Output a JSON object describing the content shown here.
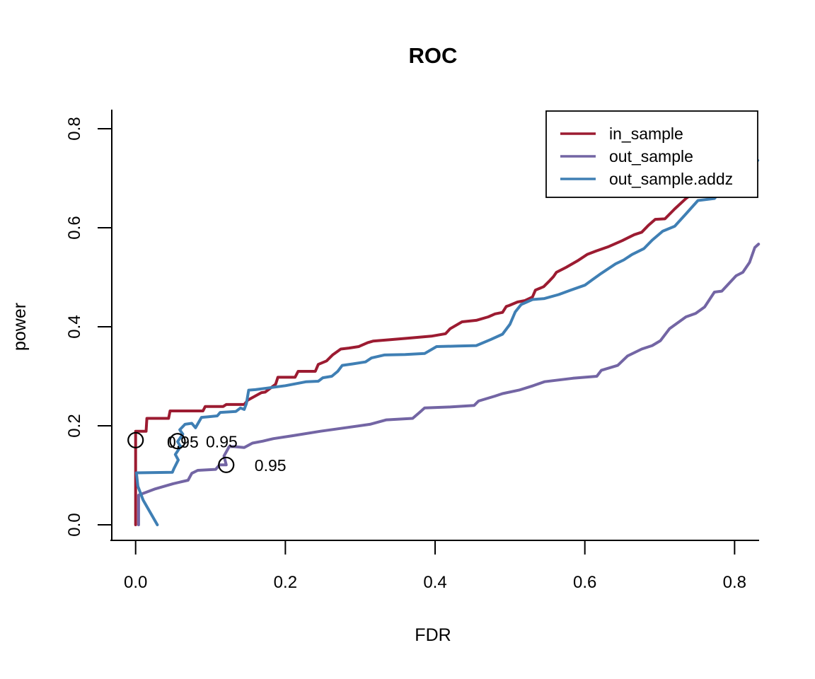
{
  "title": "ROC",
  "chart_data": {
    "type": "line",
    "title": "ROC",
    "xlabel": "FDR",
    "ylabel": "power",
    "xlim": [
      -0.033,
      0.863
    ],
    "ylim": [
      -0.032,
      0.832
    ],
    "x_ticks": [
      0.0,
      0.2,
      0.4,
      0.6,
      0.8
    ],
    "y_ticks": [
      0.0,
      0.2,
      0.4,
      0.6,
      0.8
    ],
    "x_tick_labels": [
      "0.0",
      "0.2",
      "0.4",
      "0.6",
      "0.8"
    ],
    "y_tick_labels": [
      "0.0",
      "0.2",
      "0.4",
      "0.6",
      "0.8"
    ],
    "grid": false,
    "legend_position": "topright",
    "series": [
      {
        "name": "in_sample",
        "color": "#9C1B31",
        "points": [
          [
            0.0,
            0.0
          ],
          [
            0.0,
            0.189
          ],
          [
            0.014,
            0.189
          ],
          [
            0.015,
            0.215
          ],
          [
            0.044,
            0.215
          ],
          [
            0.046,
            0.23
          ],
          [
            0.09,
            0.23
          ],
          [
            0.093,
            0.239
          ],
          [
            0.117,
            0.239
          ],
          [
            0.121,
            0.243
          ],
          [
            0.145,
            0.243
          ],
          [
            0.15,
            0.252
          ],
          [
            0.168,
            0.267
          ],
          [
            0.173,
            0.268
          ],
          [
            0.187,
            0.284
          ],
          [
            0.19,
            0.298
          ],
          [
            0.213,
            0.298
          ],
          [
            0.217,
            0.31
          ],
          [
            0.24,
            0.31
          ],
          [
            0.244,
            0.324
          ],
          [
            0.255,
            0.331
          ],
          [
            0.263,
            0.343
          ],
          [
            0.274,
            0.355
          ],
          [
            0.285,
            0.357
          ],
          [
            0.298,
            0.36
          ],
          [
            0.31,
            0.368
          ],
          [
            0.317,
            0.371
          ],
          [
            0.34,
            0.374
          ],
          [
            0.364,
            0.377
          ],
          [
            0.395,
            0.381
          ],
          [
            0.414,
            0.386
          ],
          [
            0.42,
            0.396
          ],
          [
            0.436,
            0.41
          ],
          [
            0.455,
            0.413
          ],
          [
            0.471,
            0.42
          ],
          [
            0.48,
            0.426
          ],
          [
            0.49,
            0.429
          ],
          [
            0.495,
            0.441
          ],
          [
            0.499,
            0.443
          ],
          [
            0.51,
            0.45
          ],
          [
            0.52,
            0.453
          ],
          [
            0.53,
            0.46
          ],
          [
            0.534,
            0.474
          ],
          [
            0.545,
            0.481
          ],
          [
            0.553,
            0.493
          ],
          [
            0.558,
            0.501
          ],
          [
            0.562,
            0.51
          ],
          [
            0.575,
            0.52
          ],
          [
            0.59,
            0.533
          ],
          [
            0.603,
            0.546
          ],
          [
            0.615,
            0.553
          ],
          [
            0.632,
            0.562
          ],
          [
            0.65,
            0.574
          ],
          [
            0.666,
            0.586
          ],
          [
            0.676,
            0.591
          ],
          [
            0.685,
            0.605
          ],
          [
            0.694,
            0.617
          ],
          [
            0.707,
            0.618
          ],
          [
            0.72,
            0.638
          ],
          [
            0.735,
            0.659
          ],
          [
            0.748,
            0.674
          ],
          [
            0.762,
            0.695
          ],
          [
            0.778,
            0.718
          ],
          [
            0.795,
            0.745
          ]
        ]
      },
      {
        "name": "out_sample",
        "color": "#7365A4",
        "points": [
          [
            0.004,
            0.0
          ],
          [
            0.004,
            0.06
          ],
          [
            0.025,
            0.072
          ],
          [
            0.05,
            0.083
          ],
          [
            0.07,
            0.09
          ],
          [
            0.075,
            0.104
          ],
          [
            0.083,
            0.11
          ],
          [
            0.107,
            0.112
          ],
          [
            0.112,
            0.121
          ],
          [
            0.121,
            0.121
          ],
          [
            0.118,
            0.139
          ],
          [
            0.125,
            0.158
          ],
          [
            0.131,
            0.158
          ],
          [
            0.145,
            0.156
          ],
          [
            0.156,
            0.165
          ],
          [
            0.17,
            0.169
          ],
          [
            0.184,
            0.174
          ],
          [
            0.21,
            0.18
          ],
          [
            0.247,
            0.189
          ],
          [
            0.28,
            0.196
          ],
          [
            0.313,
            0.203
          ],
          [
            0.335,
            0.212
          ],
          [
            0.37,
            0.215
          ],
          [
            0.38,
            0.228
          ],
          [
            0.386,
            0.236
          ],
          [
            0.42,
            0.238
          ],
          [
            0.452,
            0.241
          ],
          [
            0.458,
            0.25
          ],
          [
            0.48,
            0.26
          ],
          [
            0.49,
            0.265
          ],
          [
            0.512,
            0.272
          ],
          [
            0.531,
            0.281
          ],
          [
            0.546,
            0.289
          ],
          [
            0.584,
            0.296
          ],
          [
            0.616,
            0.3
          ],
          [
            0.622,
            0.312
          ],
          [
            0.644,
            0.322
          ],
          [
            0.657,
            0.341
          ],
          [
            0.676,
            0.355
          ],
          [
            0.69,
            0.362
          ],
          [
            0.701,
            0.372
          ],
          [
            0.713,
            0.396
          ],
          [
            0.735,
            0.42
          ],
          [
            0.748,
            0.427
          ],
          [
            0.76,
            0.44
          ],
          [
            0.773,
            0.47
          ],
          [
            0.783,
            0.472
          ],
          [
            0.802,
            0.503
          ],
          [
            0.811,
            0.51
          ],
          [
            0.82,
            0.53
          ],
          [
            0.827,
            0.56
          ],
          [
            0.832,
            0.567
          ]
        ]
      },
      {
        "name": "out_sample.addz",
        "color": "#3F7FB4",
        "points": [
          [
            0.029,
            0.0
          ],
          [
            0.01,
            0.05
          ],
          [
            0.003,
            0.078
          ],
          [
            0.001,
            0.105
          ],
          [
            0.049,
            0.106
          ],
          [
            0.051,
            0.113
          ],
          [
            0.057,
            0.131
          ],
          [
            0.053,
            0.142
          ],
          [
            0.06,
            0.158
          ],
          [
            0.056,
            0.168
          ],
          [
            0.063,
            0.183
          ],
          [
            0.059,
            0.192
          ],
          [
            0.066,
            0.203
          ],
          [
            0.075,
            0.205
          ],
          [
            0.08,
            0.196
          ],
          [
            0.088,
            0.217
          ],
          [
            0.096,
            0.218
          ],
          [
            0.109,
            0.22
          ],
          [
            0.113,
            0.227
          ],
          [
            0.134,
            0.229
          ],
          [
            0.14,
            0.236
          ],
          [
            0.145,
            0.233
          ],
          [
            0.148,
            0.245
          ],
          [
            0.151,
            0.272
          ],
          [
            0.16,
            0.273
          ],
          [
            0.175,
            0.276
          ],
          [
            0.2,
            0.281
          ],
          [
            0.228,
            0.289
          ],
          [
            0.244,
            0.29
          ],
          [
            0.25,
            0.297
          ],
          [
            0.262,
            0.3
          ],
          [
            0.27,
            0.31
          ],
          [
            0.276,
            0.322
          ],
          [
            0.29,
            0.325
          ],
          [
            0.307,
            0.329
          ],
          [
            0.315,
            0.337
          ],
          [
            0.332,
            0.343
          ],
          [
            0.36,
            0.344
          ],
          [
            0.386,
            0.346
          ],
          [
            0.402,
            0.36
          ],
          [
            0.43,
            0.361
          ],
          [
            0.455,
            0.362
          ],
          [
            0.474,
            0.374
          ],
          [
            0.49,
            0.385
          ],
          [
            0.5,
            0.405
          ],
          [
            0.507,
            0.43
          ],
          [
            0.515,
            0.445
          ],
          [
            0.53,
            0.455
          ],
          [
            0.546,
            0.457
          ],
          [
            0.565,
            0.465
          ],
          [
            0.581,
            0.474
          ],
          [
            0.6,
            0.484
          ],
          [
            0.61,
            0.495
          ],
          [
            0.622,
            0.508
          ],
          [
            0.641,
            0.527
          ],
          [
            0.652,
            0.535
          ],
          [
            0.663,
            0.546
          ],
          [
            0.679,
            0.558
          ],
          [
            0.69,
            0.575
          ],
          [
            0.704,
            0.593
          ],
          [
            0.72,
            0.603
          ],
          [
            0.735,
            0.628
          ],
          [
            0.751,
            0.655
          ],
          [
            0.773,
            0.659
          ],
          [
            0.792,
            0.692
          ],
          [
            0.812,
            0.712
          ],
          [
            0.831,
            0.736
          ]
        ]
      }
    ],
    "threshold_points": [
      {
        "series": "in_sample",
        "x": 0.0,
        "y": 0.171,
        "label": "0.95",
        "label_x": 0.063,
        "label_y": 0.167,
        "label_color": "#9C1B31"
      },
      {
        "series": "out_sample.addz",
        "x": 0.056,
        "y": 0.169,
        "label": "0.95",
        "label_x": 0.115,
        "label_y": 0.168,
        "label_color": "#3F7FB4"
      },
      {
        "series": "out_sample",
        "x": 0.121,
        "y": 0.121,
        "label": "0.95",
        "label_x": 0.18,
        "label_y": 0.12,
        "label_color": "#7365A4"
      }
    ]
  },
  "legend": {
    "entries": [
      {
        "label": "in_sample",
        "color": "#9C1B31"
      },
      {
        "label": "out_sample",
        "color": "#7365A4"
      },
      {
        "label": "out_sample.addz",
        "color": "#3F7FB4"
      }
    ]
  },
  "colors": {
    "axis": "#000000",
    "background": "#ffffff",
    "marker_stroke": "#000000"
  }
}
